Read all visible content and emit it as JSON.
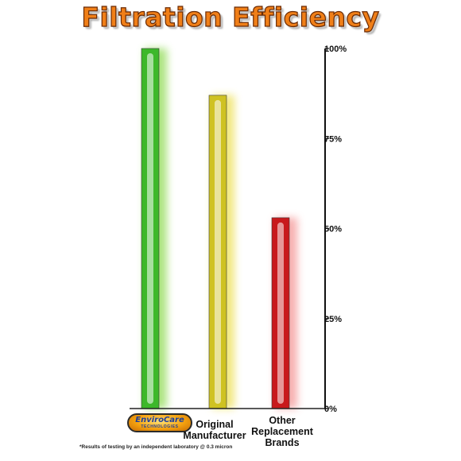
{
  "chart_data": {
    "type": "bar",
    "title": "Filtration Efficiency",
    "categories": [
      {
        "label": "EnviroCare TECHNOLOGIES",
        "logo_name": "EnviroCare",
        "logo_sub": "TECHNOLOGIES",
        "is_logo": true
      },
      {
        "label": "Original Manufacturer",
        "lines": [
          "Original",
          "Manufacturer"
        ],
        "is_logo": false
      },
      {
        "label": "Other Replacement Brands",
        "lines": [
          "Other",
          "Replacement",
          "Brands"
        ],
        "is_logo": false
      }
    ],
    "values": [
      100,
      87,
      53
    ],
    "bar_colors": [
      "#3db82a",
      "#cfc222",
      "#c8191c"
    ],
    "glow_colors": [
      "#9fe06a",
      "#f0e46a",
      "#f6a3a3"
    ],
    "yaxis": {
      "position": "right",
      "min": 0,
      "max": 100,
      "ticks": [
        {
          "value": 100,
          "label": "100%"
        },
        {
          "value": 75,
          "label": "75%"
        },
        {
          "value": 50,
          "label": "50%"
        },
        {
          "value": 25,
          "label": "25%"
        },
        {
          "value": 0,
          "label": "0%"
        }
      ]
    },
    "grid": false,
    "legend": "none",
    "footnote": "*Results of testing by an independent laboratory @ 0.3 micron"
  }
}
